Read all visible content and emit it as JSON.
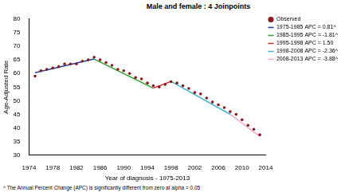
{
  "chart_data": {
    "type": "line",
    "title": "Male and female : 4 Joinpoints",
    "x_label": "Year of diagnosis - 1975-2013",
    "y_label": "Age-Adjusted Rate",
    "annotations": [
      "^ The Annual Percent Change (APC) is significantly different from zero at alpha = 0.05"
    ],
    "xlim": [
      1974,
      2014
    ],
    "xticks": [
      1974,
      1978,
      1982,
      1986,
      1990,
      1994,
      1998,
      2002,
      2006,
      2010,
      2014
    ],
    "ylim": [
      30,
      80
    ],
    "yticks": [
      30,
      35,
      40,
      45,
      50,
      55,
      60,
      65,
      70,
      75,
      80
    ],
    "grid": false,
    "legend": "right",
    "series": [
      {
        "name": "Observed",
        "type": "scatter",
        "marker": "circle",
        "color": "#8b1a1a",
        "x": [
          1975,
          1976,
          1977,
          1978,
          1979,
          1980,
          1981,
          1982,
          1983,
          1984,
          1985,
          1986,
          1987,
          1988,
          1989,
          1990,
          1991,
          1992,
          1993,
          1994,
          1995,
          1996,
          1997,
          1998,
          1999,
          2000,
          2001,
          2002,
          2003,
          2004,
          2005,
          2006,
          2007,
          2008,
          2009,
          2010,
          2011,
          2012,
          2013
        ],
        "values": [
          59,
          61,
          61.5,
          62,
          62.5,
          63.5,
          63.5,
          63.5,
          64.5,
          65,
          66,
          65,
          64,
          63,
          61.5,
          61,
          60,
          58.5,
          58,
          56.5,
          55.5,
          55,
          56,
          57,
          56.5,
          55.5,
          54.5,
          53,
          52.5,
          51,
          49.5,
          48.5,
          47.5,
          46,
          45,
          43,
          41,
          39.5,
          37.5
        ]
      },
      {
        "name": "1975-1985 APC = 0.81^",
        "type": "line",
        "line_style": "solid",
        "color": "#1f3f9f",
        "x": [
          1975,
          1985
        ],
        "values": [
          60.3,
          65.3
        ]
      },
      {
        "name": "1985-1995 APC = -1.81^",
        "type": "line",
        "line_style": "solid",
        "color": "#2ca02c",
        "x": [
          1985,
          1995
        ],
        "values": [
          65.3,
          54.6
        ]
      },
      {
        "name": "1995-1998 APC = 1.50",
        "type": "line",
        "line_style": "solid",
        "color": "#d62728",
        "x": [
          1995,
          1998
        ],
        "values": [
          54.6,
          57.1
        ]
      },
      {
        "name": "1998-2008 APC = -2.36^",
        "type": "line",
        "line_style": "solid",
        "color": "#3fb7d6",
        "x": [
          1998,
          2008
        ],
        "values": [
          57.1,
          45.0
        ]
      },
      {
        "name": "2008-2013 APC = -3.88^",
        "type": "line",
        "line_style": "solid",
        "color": "#f4a6c8",
        "x": [
          2008,
          2013
        ],
        "values": [
          45.0,
          36.9
        ]
      }
    ]
  }
}
